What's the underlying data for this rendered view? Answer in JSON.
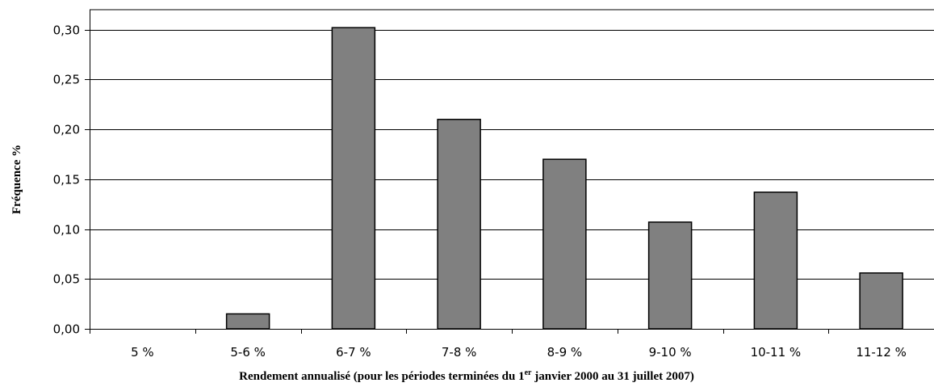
{
  "chart_data": {
    "type": "bar",
    "categories": [
      "5 %",
      "5-6 %",
      "6-7 %",
      "7-8 %",
      "8-9 %",
      "9-10 %",
      "10-11 %",
      "11-12 %"
    ],
    "values": [
      0.0,
      0.015,
      0.302,
      0.21,
      0.17,
      0.107,
      0.137,
      0.056
    ],
    "ylim": [
      0,
      0.3
    ],
    "yticks": [
      "0,00",
      "0,05",
      "0,10",
      "0,15",
      "0,20",
      "0,25",
      "0,30"
    ],
    "ytick_values": [
      0,
      0.05,
      0.1,
      0.15,
      0.2,
      0.25,
      0.3
    ],
    "ylabel": "Fréquence %",
    "xlabel_main": "Rendement annualisé (pour les périodes terminées du 1",
    "xlabel_sup": "er",
    "xlabel_rest": " janvier 2000 au 31 juillet 2007)",
    "grid": true,
    "bar_color": "#808080",
    "bar_stroke": "#000000"
  }
}
